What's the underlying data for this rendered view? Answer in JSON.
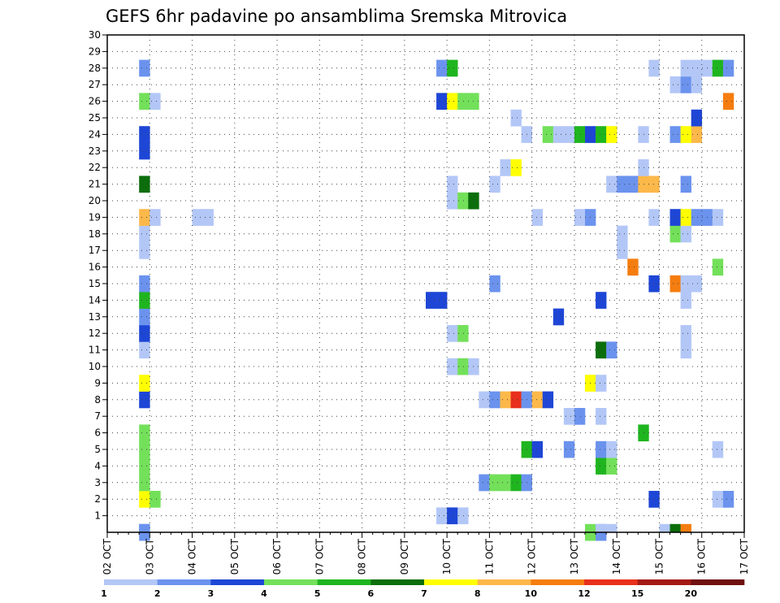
{
  "chart_data": {
    "type": "heatmap",
    "title": "GEFS 6hr padavine po ansamblima Sremska Mitrovica",
    "xlabel": "",
    "ylabel": "",
    "x_tick_labels": [
      "02 OCT",
      "03 OCT",
      "04 OCT",
      "05 OCT",
      "06 OCT",
      "07 OCT",
      "08 OCT",
      "09 OCT",
      "10 OCT",
      "11 OCT",
      "12 OCT",
      "13 OCT",
      "14 OCT",
      "15 OCT",
      "16 OCT",
      "17 OCT"
    ],
    "y_tick_labels": [
      "1",
      "2",
      "3",
      "4",
      "5",
      "6",
      "7",
      "8",
      "9",
      "10",
      "11",
      "12",
      "13",
      "14",
      "15",
      "16",
      "17",
      "18",
      "19",
      "20",
      "21",
      "22",
      "23",
      "24",
      "25",
      "26",
      "27",
      "28",
      "29",
      "30"
    ],
    "x_unit": "6-hour steps from 02 OCT 00Z",
    "xlim": [
      0,
      60
    ],
    "ylim": [
      0,
      30
    ],
    "grid": true,
    "legend_position": "bottom",
    "colorbar_labels": [
      "1",
      "2",
      "3",
      "4",
      "5",
      "6",
      "7",
      "8",
      "10",
      "12",
      "15",
      "20"
    ],
    "colorbar_colors": [
      "#b3c7f7",
      "#6b93ee",
      "#1e46d6",
      "#73e05a",
      "#1fb51f",
      "#0b6e0b",
      "#ffff00",
      "#fdb84a",
      "#f57d0f",
      "#e8301c",
      "#a51a14",
      "#701010"
    ],
    "cells": [
      {
        "x": 4,
        "y": 0,
        "c": 1
      },
      {
        "x": 4,
        "y": 2,
        "c": 6
      },
      {
        "x": 4,
        "y": 3,
        "c": 3
      },
      {
        "x": 4,
        "y": 4,
        "c": 3
      },
      {
        "x": 4,
        "y": 5,
        "c": 3
      },
      {
        "x": 4,
        "y": 6,
        "c": 3
      },
      {
        "x": 4,
        "y": 8,
        "c": 2
      },
      {
        "x": 4,
        "y": 9,
        "c": 6
      },
      {
        "x": 4,
        "y": 11,
        "c": 0
      },
      {
        "x": 4,
        "y": 12,
        "c": 2
      },
      {
        "x": 4,
        "y": 13,
        "c": 1
      },
      {
        "x": 4,
        "y": 14,
        "c": 4
      },
      {
        "x": 4,
        "y": 15,
        "c": 1
      },
      {
        "x": 4,
        "y": 17,
        "c": 0
      },
      {
        "x": 4,
        "y": 18,
        "c": 0
      },
      {
        "x": 4,
        "y": 19,
        "c": 7
      },
      {
        "x": 4,
        "y": 21,
        "c": 5
      },
      {
        "x": 4,
        "y": 23,
        "c": 2
      },
      {
        "x": 4,
        "y": 24,
        "c": 2
      },
      {
        "x": 4,
        "y": 26,
        "c": 3
      },
      {
        "x": 4,
        "y": 28,
        "c": 1
      },
      {
        "x": 5,
        "y": 2,
        "c": 3
      },
      {
        "x": 5,
        "y": 19,
        "c": 0
      },
      {
        "x": 5,
        "y": 26,
        "c": 0
      },
      {
        "x": 9,
        "y": 19,
        "c": 0
      },
      {
        "x": 10,
        "y": 19,
        "c": 0
      },
      {
        "x": 31,
        "y": 14,
        "c": 2
      },
      {
        "x": 32,
        "y": 14,
        "c": 2
      },
      {
        "x": 32,
        "y": 1,
        "c": 0
      },
      {
        "x": 32,
        "y": 26,
        "c": 2
      },
      {
        "x": 32,
        "y": 28,
        "c": 1
      },
      {
        "x": 33,
        "y": 1,
        "c": 2
      },
      {
        "x": 33,
        "y": 10,
        "c": 0
      },
      {
        "x": 33,
        "y": 12,
        "c": 0
      },
      {
        "x": 33,
        "y": 20,
        "c": 0
      },
      {
        "x": 33,
        "y": 21,
        "c": 0
      },
      {
        "x": 33,
        "y": 26,
        "c": 6
      },
      {
        "x": 33,
        "y": 28,
        "c": 4
      },
      {
        "x": 34,
        "y": 1,
        "c": 0
      },
      {
        "x": 34,
        "y": 10,
        "c": 3
      },
      {
        "x": 34,
        "y": 12,
        "c": 3
      },
      {
        "x": 34,
        "y": 20,
        "c": 3
      },
      {
        "x": 34,
        "y": 26,
        "c": 3
      },
      {
        "x": 35,
        "y": 10,
        "c": 0
      },
      {
        "x": 35,
        "y": 20,
        "c": 5
      },
      {
        "x": 35,
        "y": 26,
        "c": 3
      },
      {
        "x": 36,
        "y": 3,
        "c": 1
      },
      {
        "x": 36,
        "y": 8,
        "c": 0
      },
      {
        "x": 37,
        "y": 3,
        "c": 3
      },
      {
        "x": 37,
        "y": 8,
        "c": 1
      },
      {
        "x": 37,
        "y": 15,
        "c": 1
      },
      {
        "x": 37,
        "y": 21,
        "c": 0
      },
      {
        "x": 38,
        "y": 3,
        "c": 3
      },
      {
        "x": 38,
        "y": 8,
        "c": 7
      },
      {
        "x": 38,
        "y": 22,
        "c": 0
      },
      {
        "x": 39,
        "y": 3,
        "c": 4
      },
      {
        "x": 39,
        "y": 8,
        "c": 9
      },
      {
        "x": 39,
        "y": 22,
        "c": 6
      },
      {
        "x": 39,
        "y": 25,
        "c": 0
      },
      {
        "x": 40,
        "y": 3,
        "c": 1
      },
      {
        "x": 40,
        "y": 5,
        "c": 4
      },
      {
        "x": 40,
        "y": 8,
        "c": 1
      },
      {
        "x": 40,
        "y": 24,
        "c": 0
      },
      {
        "x": 41,
        "y": 5,
        "c": 2
      },
      {
        "x": 41,
        "y": 8,
        "c": 7
      },
      {
        "x": 41,
        "y": 19,
        "c": 0
      },
      {
        "x": 42,
        "y": 8,
        "c": 2
      },
      {
        "x": 42,
        "y": 24,
        "c": 3
      },
      {
        "x": 43,
        "y": 13,
        "c": 2
      },
      {
        "x": 43,
        "y": 24,
        "c": 0
      },
      {
        "x": 44,
        "y": 5,
        "c": 1
      },
      {
        "x": 44,
        "y": 7,
        "c": 0
      },
      {
        "x": 44,
        "y": 24,
        "c": 0
      },
      {
        "x": 45,
        "y": 7,
        "c": 1
      },
      {
        "x": 45,
        "y": 19,
        "c": 0
      },
      {
        "x": 45,
        "y": 24,
        "c": 4
      },
      {
        "x": 46,
        "y": 0,
        "c": 3
      },
      {
        "x": 46,
        "y": 9,
        "c": 6
      },
      {
        "x": 46,
        "y": 19,
        "c": 1
      },
      {
        "x": 46,
        "y": 24,
        "c": 2
      },
      {
        "x": 47,
        "y": 0,
        "c": 1
      },
      {
        "x": 47,
        "y": 4,
        "c": 4
      },
      {
        "x": 47,
        "y": 5,
        "c": 1
      },
      {
        "x": 47,
        "y": 7,
        "c": 0
      },
      {
        "x": 47,
        "y": 9,
        "c": 0
      },
      {
        "x": 47,
        "y": 11,
        "c": 5
      },
      {
        "x": 47,
        "y": 14,
        "c": 2
      },
      {
        "x": 47,
        "y": 24,
        "c": 4
      },
      {
        "x": 48,
        "y": 4,
        "c": 3
      },
      {
        "x": 48,
        "y": 5,
        "c": 0
      },
      {
        "x": 48,
        "y": 11,
        "c": 1
      },
      {
        "x": 48,
        "y": 21,
        "c": 0
      },
      {
        "x": 48,
        "y": 24,
        "c": 6
      },
      {
        "x": 49,
        "y": 17,
        "c": 0
      },
      {
        "x": 49,
        "y": 18,
        "c": 0
      },
      {
        "x": 49,
        "y": 21,
        "c": 1
      },
      {
        "x": 50,
        "y": 16,
        "c": 8
      },
      {
        "x": 50,
        "y": 21,
        "c": 1
      },
      {
        "x": 51,
        "y": 6,
        "c": 4
      },
      {
        "x": 51,
        "y": 21,
        "c": 7
      },
      {
        "x": 51,
        "y": 22,
        "c": 0
      },
      {
        "x": 51,
        "y": 24,
        "c": 0
      },
      {
        "x": 52,
        "y": 2,
        "c": 2
      },
      {
        "x": 52,
        "y": 15,
        "c": 2
      },
      {
        "x": 52,
        "y": 19,
        "c": 0
      },
      {
        "x": 52,
        "y": 21,
        "c": 7
      },
      {
        "x": 52,
        "y": 28,
        "c": 0
      },
      {
        "x": 54,
        "y": 15,
        "c": 8
      },
      {
        "x": 54,
        "y": 18,
        "c": 3
      },
      {
        "x": 54,
        "y": 19,
        "c": 2
      },
      {
        "x": 54,
        "y": 24,
        "c": 1
      },
      {
        "x": 54,
        "y": 27,
        "c": 0
      },
      {
        "x": 55,
        "y": 11,
        "c": 0
      },
      {
        "x": 55,
        "y": 12,
        "c": 0
      },
      {
        "x": 55,
        "y": 14,
        "c": 0
      },
      {
        "x": 55,
        "y": 15,
        "c": 0
      },
      {
        "x": 55,
        "y": 18,
        "c": 0
      },
      {
        "x": 55,
        "y": 19,
        "c": 6
      },
      {
        "x": 55,
        "y": 21,
        "c": 1
      },
      {
        "x": 55,
        "y": 24,
        "c": 6
      },
      {
        "x": 55,
        "y": 27,
        "c": 1
      },
      {
        "x": 55,
        "y": 28,
        "c": 0
      },
      {
        "x": 56,
        "y": 15,
        "c": 0
      },
      {
        "x": 56,
        "y": 19,
        "c": 1
      },
      {
        "x": 56,
        "y": 24,
        "c": 7
      },
      {
        "x": 56,
        "y": 25,
        "c": 2
      },
      {
        "x": 56,
        "y": 27,
        "c": 0
      },
      {
        "x": 56,
        "y": 28,
        "c": 0
      },
      {
        "x": 57,
        "y": 19,
        "c": 1
      },
      {
        "x": 57,
        "y": 28,
        "c": 0
      },
      {
        "x": 58,
        "y": 2,
        "c": 0
      },
      {
        "x": 58,
        "y": 5,
        "c": 0
      },
      {
        "x": 58,
        "y": 16,
        "c": 3
      },
      {
        "x": 58,
        "y": 19,
        "c": 0
      },
      {
        "x": 58,
        "y": 28,
        "c": 4
      },
      {
        "x": 59,
        "y": 2,
        "c": 1
      },
      {
        "x": 59,
        "y": 26,
        "c": 8
      },
      {
        "x": 59,
        "y": 28,
        "c": 1
      }
    ],
    "bottom_partial_cells": [
      {
        "x": 4,
        "c": 1
      },
      {
        "x": 47,
        "c": 0
      },
      {
        "x": 48,
        "c": 0
      },
      {
        "x": 53,
        "c": 0
      },
      {
        "x": 54,
        "c": 5
      },
      {
        "x": 55,
        "c": 8
      }
    ]
  }
}
